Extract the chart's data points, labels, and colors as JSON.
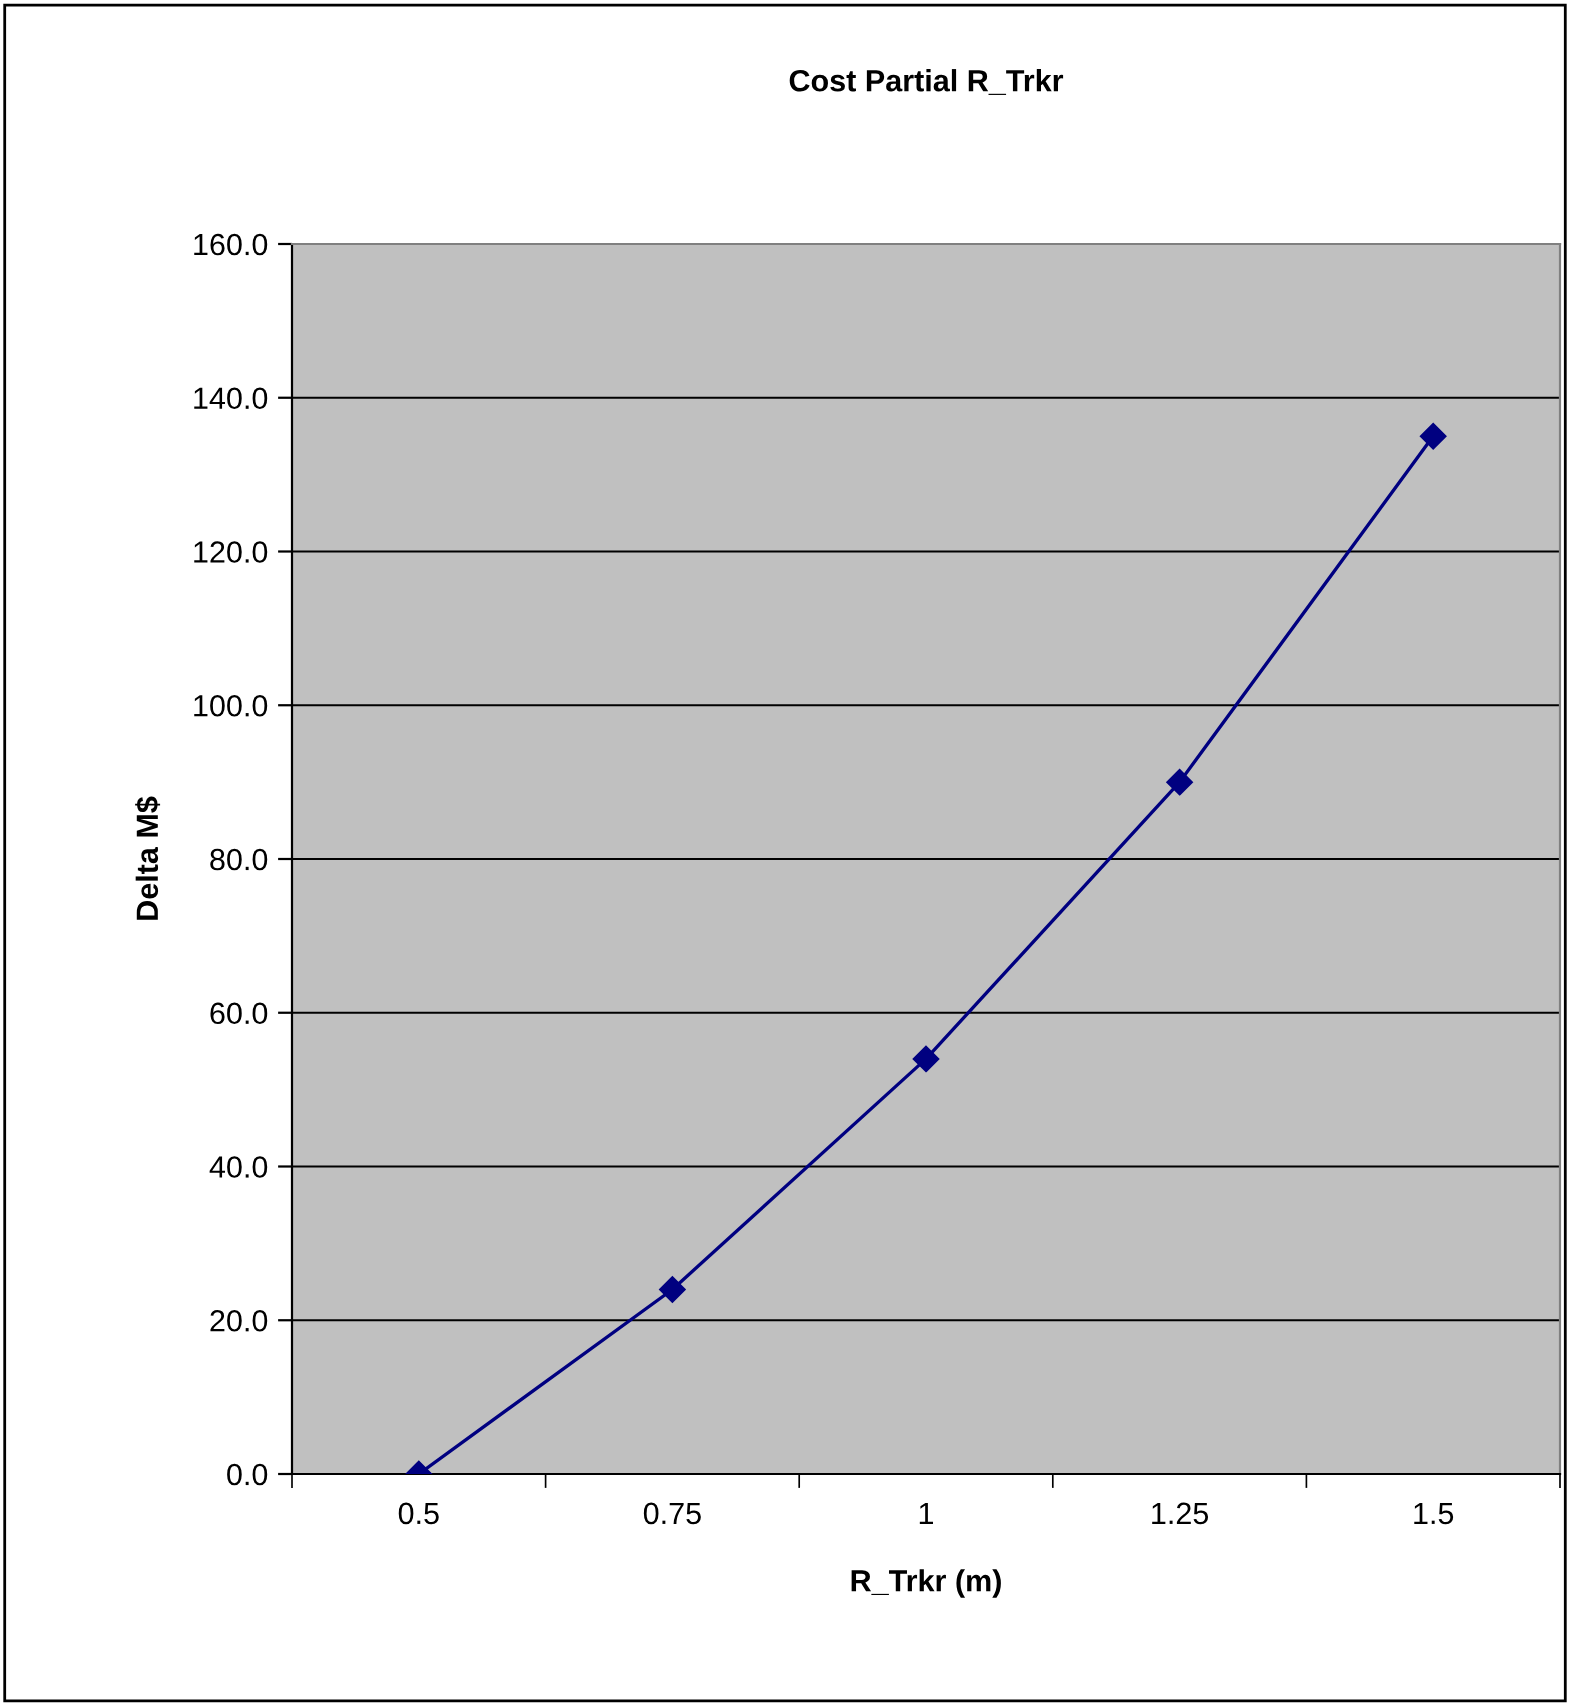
{
  "chart_data": {
    "type": "line",
    "title": "Cost Partial R_Trkr",
    "xlabel": "R_Trkr (m)",
    "ylabel": "Delta M$",
    "categories": [
      "0.5",
      "0.75",
      "1",
      "1.25",
      "1.5"
    ],
    "series": [
      {
        "color": "#000080",
        "values": [
          0,
          24,
          54,
          90,
          135
        ]
      }
    ],
    "ylim": [
      0,
      160
    ],
    "yticks": [
      {
        "value": 0,
        "label": "0.0"
      },
      {
        "value": 20,
        "label": "20.0"
      },
      {
        "value": 40,
        "label": "40.0"
      },
      {
        "value": 60,
        "label": "60.0"
      },
      {
        "value": 80,
        "label": "80.0"
      },
      {
        "value": 100,
        "label": "100.0"
      },
      {
        "value": 120,
        "label": "120.0"
      },
      {
        "value": 140,
        "label": "140.0"
      },
      {
        "value": 160,
        "label": "160.0"
      }
    ],
    "grid": "y",
    "marker": "diamond",
    "line_style": "solid"
  }
}
